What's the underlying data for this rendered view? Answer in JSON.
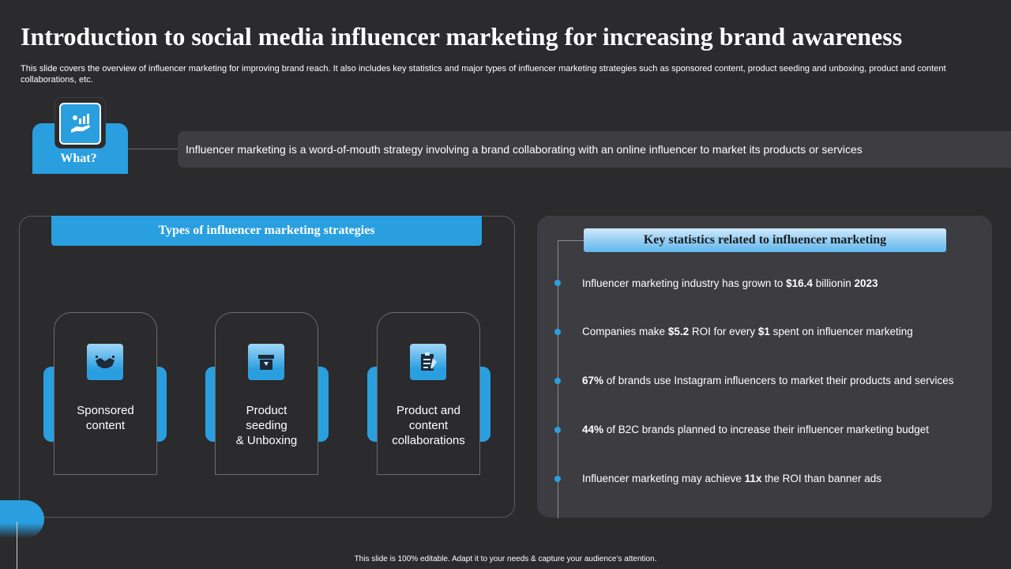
{
  "slide": {
    "title": "Introduction to social media influencer marketing for increasing brand awareness",
    "subtitle": "This slide covers the overview of influencer marketing for improving brand reach. It also includes key statistics and major types of influencer marketing strategies such as sponsored content, product seeding and unboxing, product and content collaborations, etc.",
    "footer": "This slide is 100% editable. Adapt it to your needs & capture your audience’s attention."
  },
  "what": {
    "label": "What?",
    "icon": "hand-growth-chart-icon",
    "definition": "Influencer marketing is a word-of-mouth strategy involving a brand collaborating with an online influencer to market its products or services"
  },
  "types": {
    "header": "Types of influencer marketing strategies",
    "items": [
      {
        "label": "Sponsored\ncontent",
        "icon": "handshake-icon"
      },
      {
        "label": "Product\nseeding\n& Unboxing",
        "icon": "box-icon"
      },
      {
        "label": "Product and\ncontent\ncollaborations",
        "icon": "clipboard-icon"
      }
    ]
  },
  "stats": {
    "header": "Key statistics related to influencer marketing",
    "items": [
      {
        "pre": "Influencer marketing industry has grown to ",
        "bold1": "$16.4",
        "mid": " billionin ",
        "bold2": "2023",
        "post": ""
      },
      {
        "pre": "Companies make  ",
        "bold1": "$5.2",
        "mid": " ROI for every ",
        "bold2": "$1",
        "post": " spent on influencer marketing"
      },
      {
        "pre": "",
        "bold1": "67%",
        "mid": " of brands use Instagram influencers to market their products and services",
        "bold2": "",
        "post": ""
      },
      {
        "pre": "",
        "bold1": "44%",
        "mid": " of B2C brands planned to increase their influencer marketing budget",
        "bold2": "",
        "post": ""
      },
      {
        "pre": "Influencer marketing may achieve ",
        "bold1": "11x",
        "mid": " the ROI than banner ads",
        "bold2": "",
        "post": ""
      }
    ]
  },
  "colors": {
    "background": "#2b2a2d",
    "accent": "#2a9fe0",
    "panel": "#3d3c40"
  }
}
